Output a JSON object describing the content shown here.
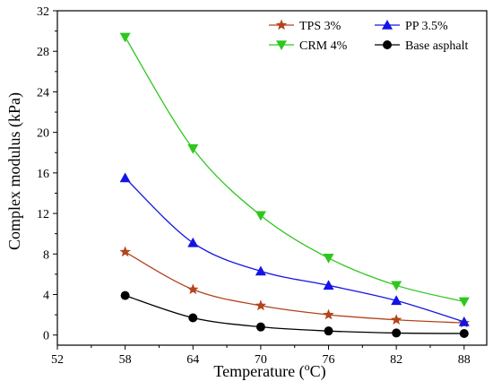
{
  "chart_data": {
    "type": "line",
    "xlabel": "Temperature (",
    "xlabel_sup": "o",
    "xlabel_end": "C)",
    "ylabel": "Complex modulus (kPa)",
    "xlim": [
      52,
      90
    ],
    "ylim": [
      -1,
      32
    ],
    "xticks": [
      52,
      58,
      64,
      70,
      76,
      82,
      88
    ],
    "yticks": [
      0,
      4,
      8,
      12,
      16,
      20,
      24,
      28,
      32
    ],
    "x": [
      58,
      64,
      70,
      76,
      82,
      88
    ],
    "legend_position": "top-right",
    "series": [
      {
        "name": "TPS 3%",
        "color": "#b3441e",
        "marker": "star",
        "values": [
          8.2,
          4.5,
          2.9,
          2.0,
          1.5,
          1.2
        ]
      },
      {
        "name": "PP 3.5%",
        "color": "#1414e6",
        "marker": "triangle-up",
        "values": [
          15.5,
          9.1,
          6.3,
          4.9,
          3.4,
          1.3
        ]
      },
      {
        "name": "CRM 4%",
        "color": "#2ec71e",
        "marker": "triangle-down",
        "values": [
          29.4,
          18.4,
          11.8,
          7.6,
          4.9,
          3.3
        ]
      },
      {
        "name": "Base asphalt",
        "color": "#000000",
        "marker": "circle",
        "values": [
          3.9,
          1.7,
          0.8,
          0.4,
          0.2,
          0.15
        ]
      }
    ]
  }
}
